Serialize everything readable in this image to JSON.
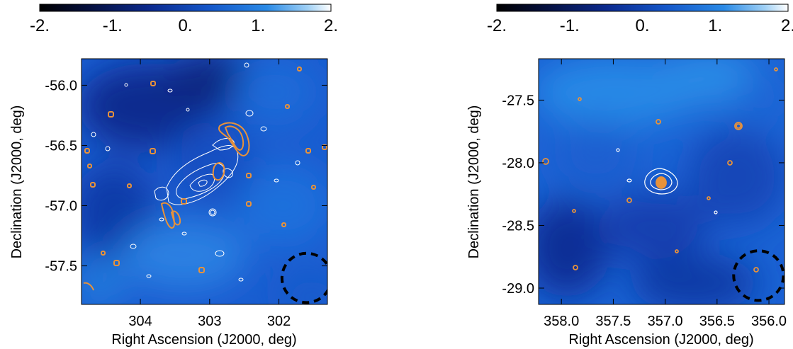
{
  "colors": {
    "contour_radio": "#e8923a",
    "contour_xray": "#ffffff",
    "beam_circle": "#000000",
    "colormap": [
      "#000000",
      "#05103f",
      "#0b2a8f",
      "#1456c8",
      "#2a8ae6",
      "#9fd0f5",
      "#ffffff"
    ]
  },
  "chart_data": [
    {
      "type": "heatmap",
      "colorbar": {
        "ticks": [
          "-2.",
          "-1.",
          "0.",
          "1.",
          "2."
        ],
        "range": [
          -2,
          2
        ]
      },
      "xlabel": "Right Ascension (J2000, deg)",
      "ylabel": "Declination (J2000, deg)",
      "xlim": [
        304.85,
        301.3
      ],
      "ylim": [
        -57.82,
        -55.78
      ],
      "xticks": [
        304,
        303,
        302
      ],
      "xtick_labels": [
        "304",
        "303",
        "302"
      ],
      "yticks": [
        -56.0,
        -56.5,
        -57.0,
        -57.5
      ],
      "ytick_labels": [
        "-56.0",
        "-56.5",
        "-57.0",
        "-57.5"
      ],
      "beam": {
        "ra": 301.6,
        "dec": -57.6,
        "radius_deg": 0.33
      },
      "grid": false
    },
    {
      "type": "heatmap",
      "colorbar": {
        "ticks": [
          "-2.",
          "-1.",
          "0.",
          "1.",
          "2."
        ],
        "range": [
          -2,
          2
        ]
      },
      "xlabel": "Right Ascension (J2000, deg)",
      "ylabel": "Declination (J2000, deg)",
      "xlim": [
        358.22,
        355.85
      ],
      "ylim": [
        -29.13,
        -27.17
      ],
      "xticks": [
        358.0,
        357.5,
        357.0,
        356.5,
        356.0
      ],
      "xtick_labels": [
        "358.0",
        "357.5",
        "357.0",
        "356.5",
        "356.0"
      ],
      "yticks": [
        -27.5,
        -28.0,
        -28.5,
        -29.0
      ],
      "ytick_labels": [
        "-27.5",
        "-28.0",
        "-28.5",
        "-29.0"
      ],
      "beam": {
        "ra": 356.1,
        "dec": -28.9,
        "radius_deg": 0.32
      },
      "grid": false
    }
  ]
}
